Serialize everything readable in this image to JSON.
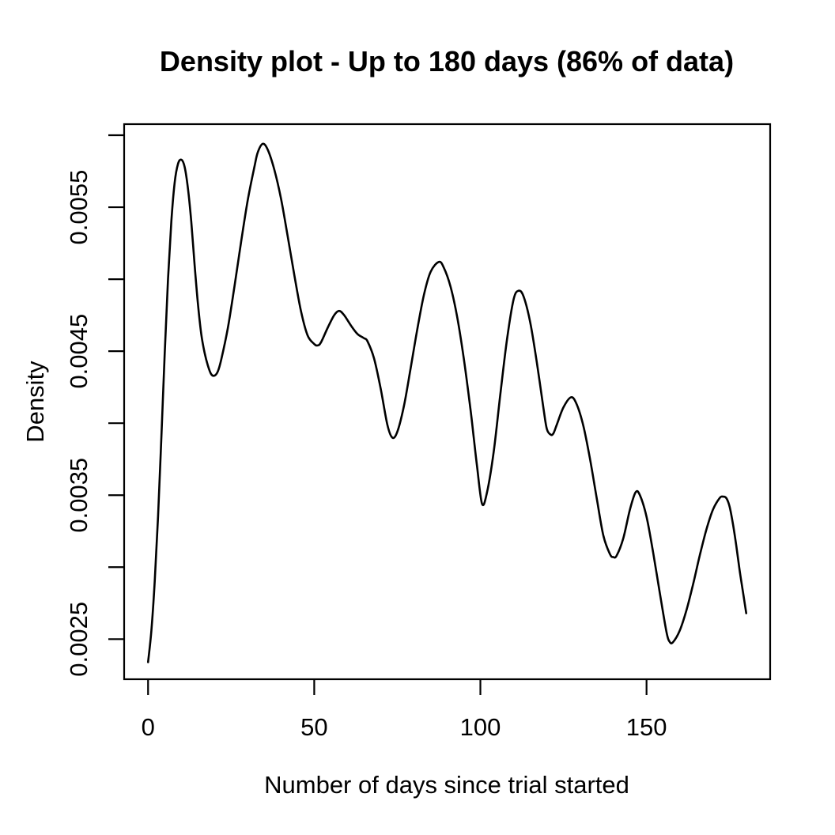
{
  "page": {
    "background": "#ffffff",
    "foreground": "#000000"
  },
  "chart_data": {
    "type": "line",
    "subtype": "kernel-density-curve",
    "title": "Density plot - Up to 180 days (86% of data)",
    "xlabel": "Number of days since trial started",
    "ylabel": "Density",
    "xlim": [
      -7.2,
      187.2
    ],
    "ylim": [
      0.0022216,
      0.0060769
    ],
    "grid": "off",
    "legend": "none",
    "line_color": "#000000",
    "box_color": "#000000",
    "x_ticks": {
      "values": [
        0,
        50,
        100,
        150
      ],
      "labels": [
        "0",
        "50",
        "100",
        "150"
      ]
    },
    "y_ticks": {
      "values": [
        0.0025,
        0.003,
        0.0035,
        0.004,
        0.0045,
        0.005,
        0.0055,
        0.006
      ],
      "labels": [
        "0.0025",
        "",
        "0.0035",
        "",
        "0.0045",
        "",
        "0.0055",
        ""
      ]
    },
    "points": [
      [
        0,
        0.00234
      ],
      [
        1,
        0.00256
      ],
      [
        2,
        0.0029
      ],
      [
        3,
        0.00335
      ],
      [
        4,
        0.0039
      ],
      [
        5,
        0.00448
      ],
      [
        6,
        0.005
      ],
      [
        7,
        0.0054
      ],
      [
        8,
        0.00567
      ],
      [
        9,
        0.0058
      ],
      [
        10,
        0.00583
      ],
      [
        11,
        0.00578
      ],
      [
        12,
        0.00563
      ],
      [
        13,
        0.0054
      ],
      [
        14,
        0.0051
      ],
      [
        15,
        0.00483
      ],
      [
        16,
        0.00462
      ],
      [
        17,
        0.00449
      ],
      [
        18,
        0.0044
      ],
      [
        19,
        0.00434
      ],
      [
        20,
        0.00433
      ],
      [
        21,
        0.00436
      ],
      [
        22,
        0.00444
      ],
      [
        24,
        0.00466
      ],
      [
        26,
        0.00495
      ],
      [
        28,
        0.00526
      ],
      [
        30,
        0.00555
      ],
      [
        32,
        0.00578
      ],
      [
        33,
        0.00588
      ],
      [
        34.5,
        0.00594
      ],
      [
        36,
        0.0059
      ],
      [
        38,
        0.00576
      ],
      [
        40,
        0.00556
      ],
      [
        42,
        0.0053
      ],
      [
        44,
        0.00503
      ],
      [
        46,
        0.00478
      ],
      [
        48,
        0.00461
      ],
      [
        50,
        0.00455
      ],
      [
        51,
        0.00454
      ],
      [
        52,
        0.00456
      ],
      [
        54,
        0.00466
      ],
      [
        56,
        0.00475
      ],
      [
        57.5,
        0.00478
      ],
      [
        59,
        0.00475
      ],
      [
        61,
        0.00468
      ],
      [
        63,
        0.00462
      ],
      [
        65,
        0.00459
      ],
      [
        66,
        0.00457
      ],
      [
        68,
        0.00445
      ],
      [
        70,
        0.00424
      ],
      [
        72,
        0.00399
      ],
      [
        73.5,
        0.0039
      ],
      [
        75,
        0.00394
      ],
      [
        77,
        0.00412
      ],
      [
        79,
        0.00438
      ],
      [
        81,
        0.00465
      ],
      [
        83,
        0.00489
      ],
      [
        85,
        0.00505
      ],
      [
        87.5,
        0.00512
      ],
      [
        89,
        0.00508
      ],
      [
        91,
        0.00495
      ],
      [
        93,
        0.00474
      ],
      [
        95,
        0.00445
      ],
      [
        97,
        0.0041
      ],
      [
        98,
        0.0039
      ],
      [
        99,
        0.0037
      ],
      [
        100.5,
        0.00344
      ],
      [
        102,
        0.00352
      ],
      [
        104,
        0.0038
      ],
      [
        106,
        0.0042
      ],
      [
        108,
        0.00458
      ],
      [
        110,
        0.00486
      ],
      [
        111.5,
        0.00492
      ],
      [
        113,
        0.00488
      ],
      [
        115,
        0.0047
      ],
      [
        117,
        0.00442
      ],
      [
        119,
        0.0041
      ],
      [
        120,
        0.00396
      ],
      [
        121.2,
        0.00392
      ],
      [
        122,
        0.00393
      ],
      [
        123,
        0.00399
      ],
      [
        125,
        0.00411
      ],
      [
        127.3,
        0.00418
      ],
      [
        129,
        0.00413
      ],
      [
        131,
        0.00398
      ],
      [
        133,
        0.00375
      ],
      [
        135,
        0.00348
      ],
      [
        137,
        0.00322
      ],
      [
        139,
        0.00309
      ],
      [
        140,
        0.00307
      ],
      [
        141,
        0.00308
      ],
      [
        143,
        0.0032
      ],
      [
        145,
        0.0034
      ],
      [
        146.7,
        0.00352
      ],
      [
        148,
        0.0035
      ],
      [
        150,
        0.00335
      ],
      [
        152,
        0.0031
      ],
      [
        154,
        0.00282
      ],
      [
        156,
        0.00255
      ],
      [
        157,
        0.00248
      ],
      [
        158,
        0.00248
      ],
      [
        160,
        0.00256
      ],
      [
        162,
        0.0027
      ],
      [
        164,
        0.00288
      ],
      [
        166,
        0.00308
      ],
      [
        168,
        0.00326
      ],
      [
        170,
        0.0034
      ],
      [
        172,
        0.00348
      ],
      [
        173,
        0.00349
      ],
      [
        174,
        0.00348
      ],
      [
        175,
        0.00342
      ],
      [
        176,
        0.0033
      ],
      [
        177,
        0.00315
      ],
      [
        178,
        0.00298
      ],
      [
        179,
        0.00283
      ],
      [
        180,
        0.00268
      ]
    ]
  }
}
